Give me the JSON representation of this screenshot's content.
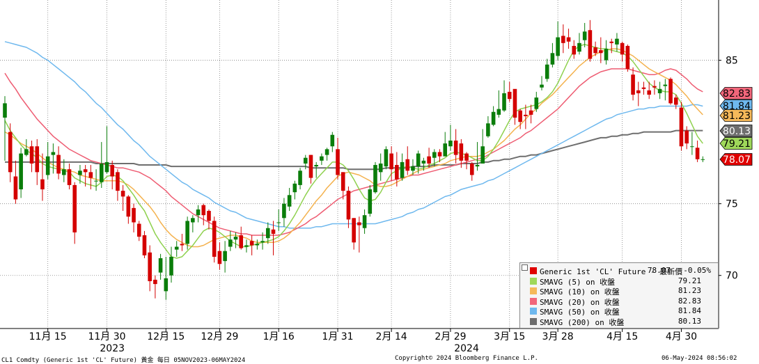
{
  "chart_data": {
    "type": "candlestick",
    "title": "",
    "y_ticks": [
      70,
      75,
      85
    ],
    "ylim": [
      66.3,
      89.2
    ],
    "x_ticks": [
      {
        "label": "11月 15",
        "i": 8
      },
      {
        "label": "11月 30",
        "i": 19
      },
      {
        "label": "12月 15",
        "i": 30
      },
      {
        "label": "12月 29",
        "i": 40
      },
      {
        "label": "1月 16",
        "i": 51
      },
      {
        "label": "1月 31",
        "i": 62
      },
      {
        "label": "2月 14",
        "i": 72
      },
      {
        "label": "2月 29",
        "i": 83
      },
      {
        "label": "3月 15",
        "i": 94
      },
      {
        "label": "3月 28",
        "i": 103
      },
      {
        "label": "4月 15",
        "i": 115
      },
      {
        "label": "4月 30",
        "i": 126
      }
    ],
    "year_labels": [
      {
        "label": "2023",
        "i": 20
      },
      {
        "label": "2024",
        "i": 86
      }
    ],
    "ohlc": {
      "open": [
        81.0,
        80.0,
        76.9,
        76.0,
        78.4,
        79.0,
        79.0,
        76.7,
        77.0,
        78.4,
        78.4,
        77.0,
        77.4,
        76.3,
        77.0,
        77.4,
        77.2,
        76.6,
        76.5,
        77.2,
        77.7,
        77.2,
        75.9,
        75.5,
        74.7,
        73.6,
        72.8,
        71.6,
        69.7,
        70.2,
        68.9,
        70.0,
        71.8,
        72.2,
        72.2,
        73.7,
        74.2,
        74.9,
        74.5,
        73.8,
        71.7,
        71.0,
        72.0,
        72.5,
        72.8,
        72.0,
        72.4,
        72.1,
        72.3,
        72.6,
        73.2,
        73.7,
        74.0,
        74.8,
        75.8,
        76.3,
        77.8,
        78.4,
        77.6,
        78.0,
        78.4,
        79.0,
        78.8,
        77.2,
        75.9,
        74.0,
        73.7,
        73.3,
        74.3,
        75.8,
        77.2,
        77.6,
        78.5,
        77.7,
        76.8,
        78.1,
        77.3,
        77.6,
        77.8,
        78.3,
        78.2,
        78.6,
        78.3,
        79.0,
        79.4,
        79.2,
        78.5,
        77.8,
        77.6,
        77.8,
        79.7,
        80.5,
        81.2,
        81.5,
        82.8,
        83.0,
        81.5,
        81.2,
        81.5,
        81.6,
        83.1,
        83.7,
        84.7,
        85.3,
        86.7,
        86.6,
        86.0,
        85.6,
        86.4,
        87.1,
        85.9,
        85.7,
        85.0,
        86.3,
        86.1,
        86.2,
        86.0,
        84.0,
        82.9,
        83.1,
        82.9,
        83.2,
        82.7,
        83.2,
        83.7,
        82.4,
        81.7,
        80.1,
        79.0,
        78.9,
        78.1
      ],
      "close": [
        82.0,
        77.2,
        75.3,
        78.5,
        78.8,
        77.8,
        77.2,
        76.0,
        78.3,
        78.6,
        77.1,
        77.4,
        76.3,
        73.0,
        77.3,
        77.2,
        76.8,
        76.6,
        77.8,
        77.9,
        76.9,
        75.9,
        75.5,
        74.1,
        73.7,
        72.7,
        71.4,
        69.6,
        69.4,
        71.2,
        69.8,
        71.3,
        72.0,
        72.1,
        73.8,
        74.0,
        74.6,
        74.2,
        73.8,
        71.3,
        70.8,
        71.7,
        72.5,
        72.7,
        71.9,
        72.1,
        72.1,
        72.2,
        72.4,
        73.3,
        72.9,
        73.7,
        75.0,
        75.6,
        76.4,
        77.3,
        78.2,
        76.8,
        77.7,
        78.3,
        78.8,
        79.8,
        77.0,
        75.9,
        73.9,
        72.3,
        73.5,
        74.2,
        76.0,
        77.7,
        77.8,
        78.8,
        77.4,
        76.7,
        77.9,
        77.3,
        77.6,
        78.5,
        78.0,
        77.8,
        78.6,
        78.3,
        79.2,
        79.4,
        78.4,
        78.0,
        78.0,
        77.0,
        77.7,
        79.0,
        80.6,
        81.4,
        81.6,
        82.7,
        82.3,
        81.0,
        80.7,
        81.1,
        81.2,
        82.4,
        83.3,
        84.7,
        85.5,
        86.6,
        86.2,
        86.3,
        85.4,
        86.2,
        87.0,
        85.1,
        85.5,
        85.5,
        85.8,
        86.2,
        86.5,
        85.4,
        84.4,
        82.6,
        82.7,
        83.0,
        82.6,
        83.1,
        83.0,
        83.3,
        82.0,
        81.9,
        79.0,
        79.2,
        79.0,
        78.1,
        78.1
      ],
      "high": [
        82.5,
        80.6,
        78.0,
        78.9,
        79.5,
        79.4,
        79.5,
        78.5,
        79.3,
        79.2,
        79.0,
        78.1,
        77.8,
        76.5,
        77.7,
        77.7,
        77.7,
        77.4,
        79.3,
        80.4,
        78.0,
        77.4,
        76.3,
        75.6,
        75.0,
        73.8,
        73.1,
        72.1,
        70.0,
        71.5,
        71.3,
        72.0,
        72.4,
        72.9,
        74.1,
        74.2,
        74.9,
        75.0,
        74.6,
        74.1,
        72.3,
        72.4,
        73.1,
        73.0,
        73.4,
        72.5,
        72.8,
        72.5,
        73.0,
        73.7,
        73.8,
        74.6,
        75.4,
        76.1,
        76.6,
        77.5,
        78.4,
        78.4,
        77.9,
        78.5,
        78.9,
        80.0,
        79.6,
        77.2,
        76.2,
        74.0,
        74.1,
        74.6,
        76.3,
        77.9,
        78.5,
        79.0,
        79.0,
        78.6,
        78.5,
        79.0,
        78.1,
        78.7,
        78.2,
        78.9,
        78.8,
        78.8,
        80.0,
        80.5,
        80.2,
        79.5,
        78.6,
        77.9,
        79.3,
        80.2,
        81.1,
        81.8,
        82.9,
        83.6,
        83.5,
        82.9,
        81.6,
        81.9,
        81.9,
        82.8,
        83.9,
        85.1,
        86.2,
        87.7,
        87.5,
        87.2,
        86.4,
        86.9,
        87.6,
        87.8,
        86.3,
        86.6,
        86.4,
        86.5,
        86.9,
        86.3,
        86.1,
        84.5,
        83.5,
        83.5,
        83.5,
        83.6,
        83.5,
        83.7,
        83.8,
        82.6,
        82.1,
        80.4,
        80.0,
        79.4,
        78.3
      ],
      "low": [
        78.0,
        76.5,
        75.0,
        75.4,
        78.3,
        77.2,
        76.3,
        75.2,
        76.7,
        77.1,
        76.7,
        76.5,
        76.0,
        72.2,
        76.4,
        76.2,
        76.0,
        75.9,
        76.1,
        77.1,
        76.0,
        75.2,
        74.5,
        73.6,
        73.0,
        72.4,
        71.2,
        68.9,
        68.4,
        69.7,
        68.3,
        69.5,
        71.3,
        71.7,
        71.8,
        73.0,
        73.7,
        73.5,
        73.2,
        70.9,
        70.4,
        70.2,
        71.7,
        71.9,
        71.8,
        71.6,
        71.4,
        71.8,
        71.8,
        72.2,
        71.4,
        73.1,
        73.4,
        74.5,
        75.3,
        76.0,
        77.4,
        76.4,
        76.8,
        77.7,
        78.0,
        78.6,
        76.7,
        75.3,
        73.3,
        71.8,
        71.6,
        72.9,
        74.1,
        75.7,
        76.6,
        77.4,
        76.6,
        76.2,
        76.6,
        77.0,
        77.0,
        77.1,
        77.3,
        77.5,
        77.6,
        77.9,
        78.3,
        78.7,
        77.8,
        77.5,
        77.4,
        76.6,
        77.3,
        77.8,
        79.6,
        80.4,
        81.0,
        81.4,
        82.1,
        80.5,
        80.2,
        80.2,
        80.6,
        81.4,
        82.9,
        83.5,
        84.5,
        85.0,
        85.5,
        85.8,
        85.1,
        85.4,
        85.9,
        84.9,
        85.3,
        84.8,
        84.7,
        85.5,
        85.6,
        84.9,
        84.2,
        82.2,
        81.8,
        82.6,
        82.3,
        82.6,
        82.3,
        82.2,
        81.9,
        81.6,
        78.7,
        78.8,
        78.4,
        77.9,
        77.9
      ]
    },
    "ma": {
      "sma5": [
        80.8,
        80.1,
        79.6,
        79.1,
        78.7,
        78.5,
        78.2,
        77.8,
        77.6,
        77.5,
        77.4,
        77.3,
        77.2,
        76.8,
        76.6,
        76.4,
        76.3,
        76.2,
        76.5,
        76.9,
        77.0,
        76.9,
        76.6,
        76.1,
        75.6,
        75.0,
        74.5,
        73.7,
        72.9,
        72.3,
        71.8,
        71.3,
        71.2,
        71.3,
        71.7,
        72.1,
        72.6,
        73.1,
        73.3,
        73.2,
        73.0,
        72.7,
        72.4,
        72.2,
        72.0,
        72.0,
        72.1,
        72.2,
        72.3,
        72.4,
        72.5,
        72.7,
        73.1,
        73.6,
        74.2,
        74.9,
        75.6,
        76.2,
        76.7,
        77.1,
        77.5,
        77.9,
        77.9,
        77.7,
        77.3,
        76.7,
        76.0,
        75.4,
        75.2,
        75.3,
        75.8,
        76.5,
        77.1,
        77.3,
        77.5,
        77.6,
        77.5,
        77.4,
        77.5,
        77.7,
        77.8,
        78.0,
        78.2,
        78.5,
        78.6,
        78.5,
        78.4,
        78.2,
        78.0,
        78.0,
        78.3,
        78.8,
        79.4,
        80.1,
        80.8,
        81.4,
        81.6,
        81.7,
        81.8,
        81.9,
        82.1,
        82.4,
        82.8,
        83.4,
        84.2,
        85.0,
        85.7,
        86.0,
        86.1,
        86.0,
        85.9,
        85.8,
        85.8,
        85.7,
        85.6,
        85.5,
        85.3,
        84.9,
        84.4,
        83.9,
        83.4,
        83.1,
        82.9,
        82.8,
        82.8,
        82.6,
        82.0,
        81.3,
        80.5,
        79.7,
        79.2
      ],
      "sma10": [
        80.0,
        79.8,
        79.5,
        79.2,
        79.0,
        78.8,
        78.5,
        78.2,
        77.9,
        77.7,
        77.5,
        77.4,
        77.3,
        77.2,
        77.0,
        76.9,
        76.8,
        76.7,
        76.6,
        76.6,
        76.6,
        76.6,
        76.5,
        76.3,
        76.0,
        75.6,
        75.2,
        74.8,
        74.3,
        73.7,
        73.2,
        72.8,
        72.5,
        72.3,
        72.1,
        72.0,
        72.0,
        72.1,
        72.3,
        72.5,
        72.6,
        72.7,
        72.8,
        72.8,
        72.7,
        72.6,
        72.4,
        72.3,
        72.3,
        72.3,
        72.3,
        72.4,
        72.6,
        72.9,
        73.3,
        73.7,
        74.2,
        74.7,
        75.2,
        75.6,
        76.1,
        76.5,
        76.9,
        77.1,
        77.2,
        77.1,
        77.0,
        76.8,
        76.6,
        76.3,
        76.2,
        76.2,
        76.3,
        76.5,
        76.7,
        76.9,
        77.1,
        77.3,
        77.4,
        77.5,
        77.6,
        77.7,
        77.8,
        78.0,
        78.1,
        78.2,
        78.3,
        78.3,
        78.3,
        78.4,
        78.6,
        78.8,
        79.1,
        79.4,
        79.8,
        80.2,
        80.5,
        80.9,
        81.3,
        81.6,
        82.0,
        82.3,
        82.6,
        83.0,
        83.4,
        83.8,
        84.2,
        84.6,
        84.9,
        85.2,
        85.4,
        85.6,
        85.7,
        85.8,
        85.8,
        85.7,
        85.5,
        85.3,
        85.0,
        84.7,
        84.4,
        84.2,
        84.0,
        83.8,
        83.6,
        83.3,
        82.9,
        82.5,
        82.0,
        81.6,
        81.2
      ],
      "sma20": [
        84.1,
        83.5,
        83.0,
        82.4,
        81.9,
        81.4,
        80.9,
        80.5,
        80.1,
        79.7,
        79.4,
        79.1,
        78.8,
        78.6,
        78.4,
        78.2,
        78.0,
        77.9,
        77.8,
        77.7,
        77.6,
        77.5,
        77.5,
        77.4,
        77.3,
        77.2,
        77.0,
        76.8,
        76.5,
        76.2,
        75.9,
        75.5,
        75.2,
        74.9,
        74.6,
        74.3,
        74.1,
        73.9,
        73.7,
        73.5,
        73.3,
        73.2,
        73.1,
        73.0,
        72.9,
        72.9,
        72.8,
        72.8,
        72.8,
        72.8,
        72.8,
        72.8,
        72.9,
        73.0,
        73.2,
        73.4,
        73.6,
        73.9,
        74.1,
        74.4,
        74.7,
        75.0,
        75.3,
        75.5,
        75.7,
        75.9,
        76.0,
        76.1,
        76.2,
        76.3,
        76.4,
        76.5,
        76.6,
        76.7,
        76.8,
        76.9,
        77.0,
        77.0,
        77.1,
        77.2,
        77.3,
        77.4,
        77.5,
        77.6,
        77.7,
        77.8,
        77.9,
        78.0,
        78.1,
        78.2,
        78.4,
        78.6,
        78.8,
        79.0,
        79.2,
        79.4,
        79.6,
        79.9,
        80.1,
        80.4,
        80.7,
        81.0,
        81.3,
        81.6,
        82.0,
        82.4,
        82.8,
        83.2,
        83.5,
        83.8,
        84.0,
        84.2,
        84.3,
        84.4,
        84.4,
        84.4,
        84.4,
        84.3,
        84.2,
        84.1,
        84.0,
        84.0,
        84.1,
        84.3,
        84.4,
        84.3,
        84.0,
        83.7,
        83.3,
        83.0,
        82.8
      ],
      "sma50": [
        86.3,
        86.2,
        86.1,
        86.0,
        85.9,
        85.7,
        85.5,
        85.2,
        85.0,
        84.7,
        84.4,
        84.1,
        83.8,
        83.5,
        83.1,
        82.8,
        82.4,
        82.0,
        81.7,
        81.3,
        80.9,
        80.5,
        80.2,
        79.8,
        79.4,
        79.1,
        78.7,
        78.3,
        78.0,
        77.7,
        77.4,
        77.1,
        76.8,
        76.5,
        76.3,
        76.0,
        75.8,
        75.6,
        75.4,
        75.1,
        74.9,
        74.7,
        74.5,
        74.4,
        74.2,
        74.0,
        73.9,
        73.8,
        73.7,
        73.6,
        73.5,
        73.4,
        73.4,
        73.3,
        73.3,
        73.3,
        73.3,
        73.3,
        73.4,
        73.4,
        73.5,
        73.6,
        73.6,
        73.6,
        73.6,
        73.6,
        73.6,
        73.6,
        73.6,
        73.6,
        73.7,
        73.8,
        73.9,
        74.0,
        74.1,
        74.3,
        74.4,
        74.6,
        74.7,
        74.9,
        75.1,
        75.3,
        75.5,
        75.6,
        75.8,
        76.0,
        76.1,
        76.2,
        76.3,
        76.4,
        76.6,
        76.7,
        76.9,
        77.1,
        77.3,
        77.5,
        77.7,
        77.9,
        78.1,
        78.3,
        78.5,
        78.7,
        78.9,
        79.1,
        79.3,
        79.5,
        79.7,
        79.9,
        80.1,
        80.3,
        80.5,
        80.7,
        80.9,
        81.0,
        81.2,
        81.3,
        81.4,
        81.5,
        81.6,
        81.6,
        81.7,
        81.7,
        81.8,
        81.8,
        81.8,
        81.8,
        81.8,
        81.8,
        81.9,
        81.9,
        81.8
      ],
      "sma200": [
        77.9,
        77.9,
        77.9,
        77.9,
        77.9,
        77.9,
        77.9,
        77.9,
        77.9,
        77.9,
        77.9,
        77.9,
        77.9,
        77.9,
        77.9,
        77.9,
        77.9,
        77.8,
        77.8,
        77.8,
        77.8,
        77.8,
        77.8,
        77.8,
        77.8,
        77.7,
        77.7,
        77.7,
        77.7,
        77.7,
        77.7,
        77.6,
        77.6,
        77.6,
        77.6,
        77.6,
        77.6,
        77.6,
        77.6,
        77.6,
        77.6,
        77.6,
        77.6,
        77.6,
        77.6,
        77.6,
        77.6,
        77.6,
        77.6,
        77.6,
        77.6,
        77.6,
        77.6,
        77.6,
        77.6,
        77.6,
        77.6,
        77.5,
        77.5,
        77.5,
        77.5,
        77.5,
        77.5,
        77.5,
        77.4,
        77.4,
        77.4,
        77.4,
        77.4,
        77.4,
        77.4,
        77.5,
        77.5,
        77.5,
        77.5,
        77.5,
        77.6,
        77.6,
        77.6,
        77.6,
        77.7,
        77.7,
        77.7,
        77.7,
        77.7,
        77.8,
        77.8,
        77.8,
        77.8,
        77.9,
        77.9,
        78.0,
        78.0,
        78.1,
        78.1,
        78.2,
        78.3,
        78.3,
        78.4,
        78.4,
        78.5,
        78.6,
        78.7,
        78.8,
        78.9,
        79.0,
        79.1,
        79.2,
        79.3,
        79.4,
        79.5,
        79.6,
        79.6,
        79.7,
        79.7,
        79.8,
        79.8,
        79.9,
        79.9,
        80.0,
        80.0,
        80.0,
        80.0,
        80.0,
        80.0,
        80.1,
        80.1,
        80.1,
        80.1,
        80.1,
        80.1
      ]
    },
    "last_value_tags": [
      {
        "value": "82.83",
        "y": 82.83,
        "color": "#f2667a",
        "text_color": "#000000"
      },
      {
        "value": "81.84",
        "y": 81.84,
        "color": "#6eb8ee",
        "text_color": "#000000"
      },
      {
        "value": "81.23",
        "y": 81.23,
        "color": "#f5b95a",
        "text_color": "#000000"
      },
      {
        "value": "80.13",
        "y": 80.13,
        "color": "#6e6e6e",
        "text_color": "#ffffff"
      },
      {
        "value": "79.21",
        "y": 79.21,
        "color": "#9fd85a",
        "text_color": "#000000"
      },
      {
        "value": "78.07",
        "y": 78.07,
        "color": "#e00000",
        "text_color": "#ffffff"
      }
    ],
    "colors": {
      "up": "#0a7d0a",
      "down": "#d40000",
      "sma5": "#8fd14f",
      "sma10": "#f4b24e",
      "sma20": "#ee5c72",
      "sma50": "#6eb8ee",
      "sma200": "#6e6e6e",
      "grid": "#808080"
    },
    "legend": [
      {
        "name": "Generic 1st 'CL' Future - 最新價",
        "value": "78.07",
        "change": "-0.05%",
        "color": "#e00000"
      },
      {
        "name": "SMAVG (5)  on 收盤",
        "value": "79.21",
        "color": "#9fd85a"
      },
      {
        "name": "SMAVG (10)  on 收盤",
        "value": "81.23",
        "color": "#f5b95a"
      },
      {
        "name": "SMAVG (20)  on 收盤",
        "value": "82.83",
        "color": "#f2667a"
      },
      {
        "name": "SMAVG (50)  on 收盤",
        "value": "81.84",
        "color": "#6eb8ee"
      },
      {
        "name": "SMAVG (200)  on 收盤",
        "value": "80.13",
        "color": "#6e6e6e"
      }
    ]
  },
  "footer": {
    "left": "CL1 Comdty (Generic 1st 'CL' Future) 黃金  每日 05NOV2023-06MAY2024",
    "center": "Copyright© 2024 Bloomberg Finance L.P.",
    "right": "06-May-2024 08:56:02"
  }
}
